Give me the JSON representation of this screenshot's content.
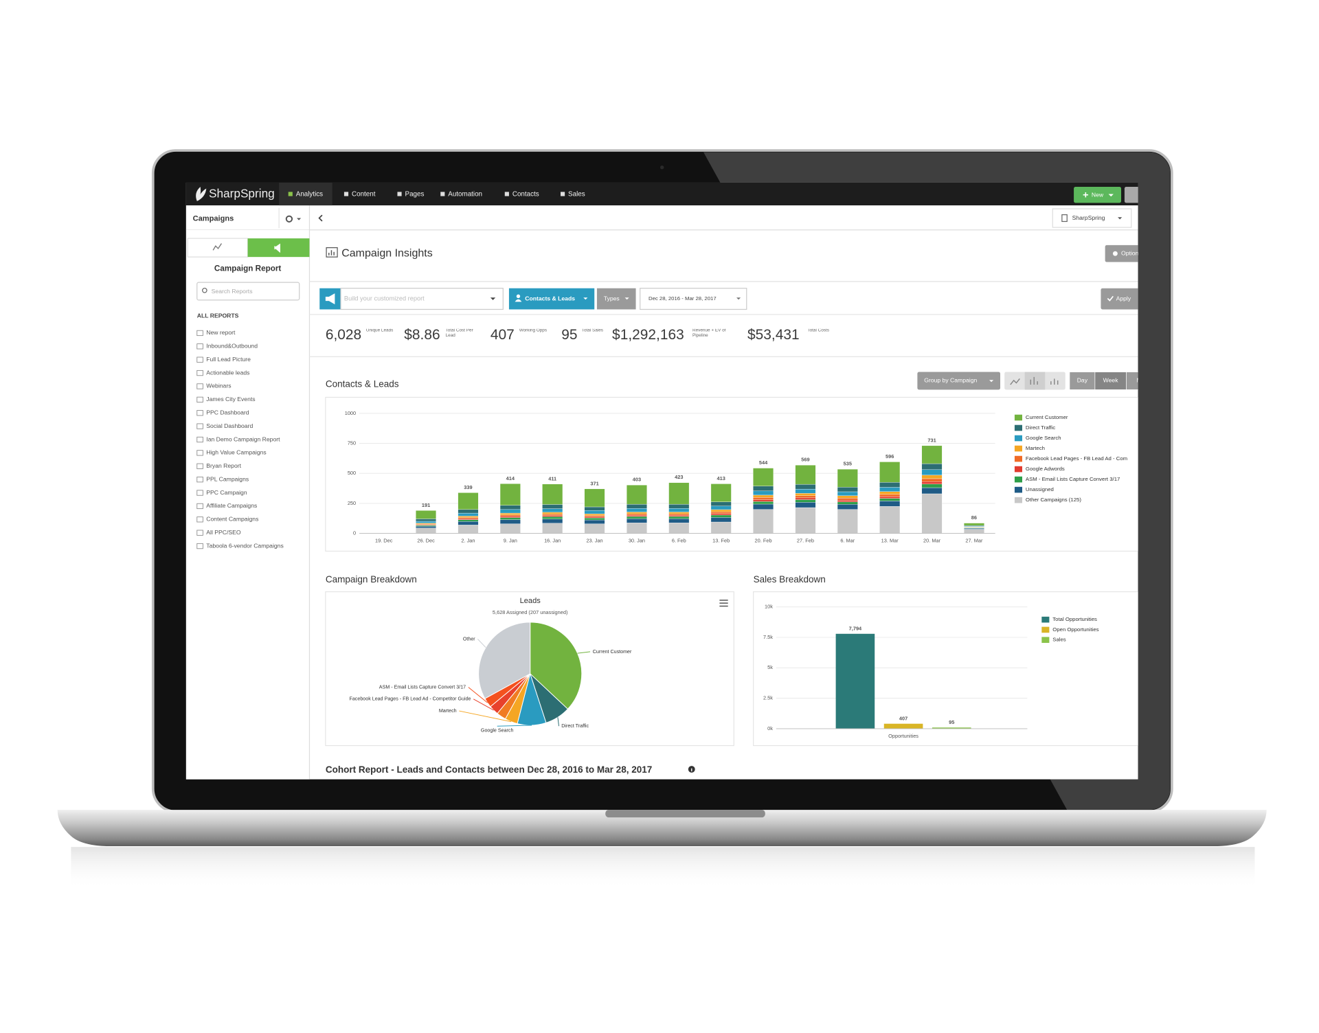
{
  "nav": {
    "logo": "SharpSpring",
    "items": [
      "Analytics",
      "Content",
      "Pages",
      "Automation",
      "Contacts",
      "Sales"
    ],
    "new_button": "New"
  },
  "subbar": {
    "section": "Campaigns",
    "account": "SharpSpring"
  },
  "sidebar": {
    "title": "Campaign Report",
    "search_placeholder": "Search Reports",
    "list_heading": "ALL REPORTS",
    "reports": [
      "New report",
      "Inbound&Outbound",
      "Full Lead Picture",
      "Actionable leads",
      "Webinars",
      "James City Events",
      "PPC Dashboard",
      "Social Dashboard",
      "Ian Demo Campaign Report",
      "High Value Campaigns",
      "Bryan Report",
      "PPL Campaigns",
      "PPC Campaign",
      "Affiliate Campaigns",
      "Content Campaigns",
      "All PPC/SEO",
      "Taboola 6-vendor Campaigns"
    ]
  },
  "header": {
    "title": "Campaign Insights",
    "options": "Options"
  },
  "filters": {
    "builder_placeholder": "Build your customized report",
    "contacts_leads": "Contacts & Leads",
    "types": "Types",
    "date_range": "Dec 28, 2016 - Mar 28, 2017",
    "apply": "Apply"
  },
  "kpis": [
    {
      "value": "6,028",
      "label": "Unique Leads"
    },
    {
      "value": "$8.86",
      "label": "Total Cost Per Lead"
    },
    {
      "value": "407",
      "label": "Working Opps"
    },
    {
      "value": "95",
      "label": "Total Sales"
    },
    {
      "value": "$1,292,163",
      "label": "Revenue + EV of Pipeline"
    },
    {
      "value": "$53,431",
      "label": "Total Costs"
    }
  ],
  "sections": {
    "contacts_leads": "Contacts & Leads",
    "group_by": "Group by Campaign",
    "periods": [
      "Day",
      "Week",
      "Month"
    ],
    "campaign_breakdown": "Campaign Breakdown",
    "sales_breakdown": "Sales Breakdown",
    "cohort": "Cohort Report - Leads and Contacts between Dec 28, 2016 to Mar 28, 2017"
  },
  "chart_data": [
    {
      "type": "bar",
      "stacked": true,
      "categories": [
        "19. Dec",
        "26. Dec",
        "2. Jan",
        "9. Jan",
        "16. Jan",
        "23. Jan",
        "30. Jan",
        "6. Feb",
        "13. Feb",
        "20. Feb",
        "27. Feb",
        "6. Mar",
        "13. Mar",
        "20. Mar",
        "27. Mar"
      ],
      "series": [
        {
          "name": "Current Customer",
          "color": "#72b33f",
          "values": [
            0,
            70,
            140,
            180,
            170,
            150,
            160,
            180,
            150,
            150,
            160,
            150,
            170,
            150,
            20
          ]
        },
        {
          "name": "Direct Traffic",
          "color": "#2c6e73",
          "values": [
            0,
            20,
            30,
            35,
            35,
            30,
            35,
            35,
            35,
            40,
            40,
            38,
            42,
            50,
            6
          ]
        },
        {
          "name": "Google Search",
          "color": "#2a9bc0",
          "values": [
            0,
            15,
            25,
            30,
            30,
            28,
            30,
            30,
            30,
            35,
            35,
            33,
            36,
            45,
            5
          ]
        },
        {
          "name": "Martech",
          "color": "#f5a623",
          "values": [
            0,
            8,
            12,
            15,
            15,
            14,
            15,
            15,
            18,
            20,
            20,
            20,
            22,
            30,
            3
          ]
        },
        {
          "name": "Facebook Lead Pages - FB Lead Ad - Com",
          "color": "#f06a25",
          "values": [
            0,
            6,
            10,
            12,
            12,
            11,
            12,
            12,
            15,
            18,
            18,
            17,
            19,
            25,
            3
          ]
        },
        {
          "name": "Google Adwords",
          "color": "#e23b2e",
          "values": [
            0,
            5,
            8,
            10,
            10,
            9,
            10,
            10,
            12,
            15,
            15,
            14,
            15,
            20,
            2
          ]
        },
        {
          "name": "ASM - Email Lists Capture Convert 3/17",
          "color": "#2e9e48",
          "values": [
            0,
            7,
            14,
            17,
            19,
            17,
            18,
            18,
            20,
            22,
            22,
            21,
            22,
            30,
            4
          ]
        },
        {
          "name": "Unassigned",
          "color": "#1f5b86",
          "values": [
            0,
            15,
            30,
            35,
            35,
            32,
            35,
            35,
            38,
            44,
            44,
            42,
            45,
            51,
            8
          ]
        },
        {
          "name": "Other Campaigns (125)",
          "color": "#c8c8c8",
          "values": [
            0,
            45,
            70,
            80,
            85,
            80,
            88,
            88,
            95,
            200,
            215,
            200,
            225,
            330,
            35
          ]
        }
      ],
      "totals": [
        null,
        191,
        339,
        414,
        411,
        371,
        403,
        423,
        413,
        544,
        569,
        535,
        596,
        731,
        86
      ],
      "ylim": [
        0,
        1000
      ],
      "yticks": [
        0,
        250,
        500,
        750,
        1000
      ],
      "grid": true,
      "legend": "right"
    },
    {
      "type": "pie",
      "title": "Leads",
      "subtitle": "5,628 Assigned (207 unassigned)",
      "categories": [
        "Current Customer",
        "Direct Traffic",
        "Google Search",
        "Martech",
        null,
        "Facebook Lead Pages - FB Lead Ad - Competitor Guide",
        "ASM - Email Lists Capture Convert 3/17",
        "Other"
      ],
      "values": [
        37,
        8,
        9,
        4,
        3,
        3,
        3,
        33
      ],
      "colors": [
        "#72b33f",
        "#2c6e73",
        "#2a9bc0",
        "#f5a623",
        "#f07b22",
        "#e8412c",
        "#f4511e",
        "#c9cdd2"
      ]
    },
    {
      "type": "bar",
      "stacked": false,
      "categories": [
        "Opportunities"
      ],
      "series": [
        {
          "name": "Total Opportunities",
          "color": "#2b7a78",
          "values": [
            7794
          ],
          "value_labels": [
            "7,794"
          ]
        },
        {
          "name": "Open Opportunities",
          "color": "#d9b526",
          "values": [
            407
          ]
        },
        {
          "name": "Sales",
          "color": "#8bc34a",
          "values": [
            95
          ]
        }
      ],
      "ylim": [
        0,
        10000
      ],
      "yticks": [
        {
          "value": 0,
          "label": "0k"
        },
        {
          "value": 2500,
          "label": "2.5k"
        },
        {
          "value": 5000,
          "label": "5k"
        },
        {
          "value": 7500,
          "label": "7.5k"
        },
        {
          "value": 10000,
          "label": "10k"
        }
      ],
      "grid": true,
      "legend": "right"
    }
  ]
}
